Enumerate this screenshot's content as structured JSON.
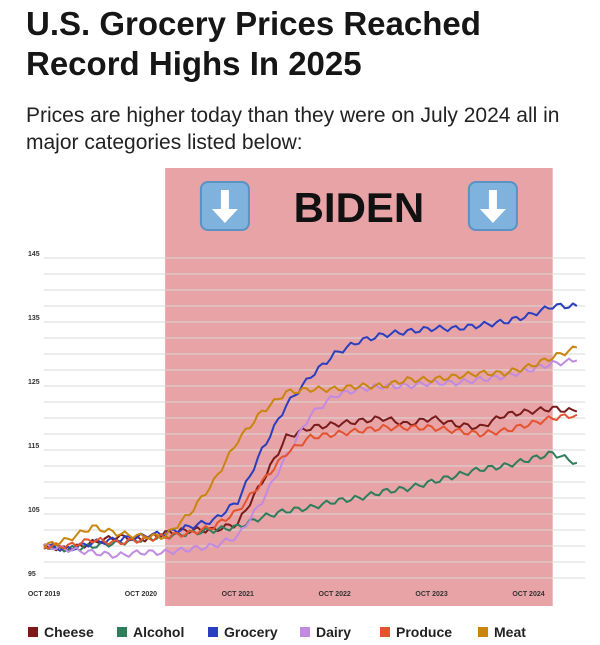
{
  "chart_data": {
    "type": "line",
    "title": "U.S. Grocery Prices Reached Record Highs In 2025",
    "subtitle": "Prices are higher today than they were on July 2024 all in major categories listed below:",
    "xlabel": "",
    "ylabel": "",
    "ylim": [
      95,
      145
    ],
    "yticks": [
      95,
      105,
      115,
      125,
      135,
      145
    ],
    "xlim": [
      "2019-10",
      "2025-05"
    ],
    "xticks": [
      "OCT 2019",
      "OCT 2020",
      "OCT 2021",
      "OCT 2022",
      "OCT 2023",
      "OCT 2024"
    ],
    "x": [
      "2019-10",
      "2020-01",
      "2020-04",
      "2020-07",
      "2020-10",
      "2021-01",
      "2021-04",
      "2021-07",
      "2021-10",
      "2022-01",
      "2022-04",
      "2022-07",
      "2022-10",
      "2023-01",
      "2023-04",
      "2023-07",
      "2023-10",
      "2024-01",
      "2024-04",
      "2024-07",
      "2024-10",
      "2025-01",
      "2025-04"
    ],
    "series": [
      {
        "name": "Cheese",
        "color": "#7a1b1b",
        "values": [
          100,
          99.5,
          100.5,
          101.5,
          101,
          102,
          102.5,
          102.5,
          103.5,
          110,
          117,
          118.5,
          119,
          119.5,
          120,
          119,
          120,
          119,
          118.5,
          120.5,
          121,
          121.5,
          121
        ]
      },
      {
        "name": "Alcohol",
        "color": "#2e7d5b",
        "values": [
          100,
          99.5,
          100,
          100.5,
          101,
          101.5,
          102,
          102.5,
          103,
          104.5,
          105.5,
          106,
          107,
          107.5,
          108.5,
          109,
          110,
          111,
          112,
          112.5,
          113.5,
          114.5,
          113
        ]
      },
      {
        "name": "Grocery",
        "color": "#2a3fbf",
        "values": [
          100,
          99.5,
          100.5,
          101,
          101.5,
          102,
          103,
          104,
          107,
          115,
          122,
          126.5,
          130,
          132,
          133,
          133.5,
          134,
          134,
          134.5,
          135,
          136,
          137.5,
          137.5
        ]
      },
      {
        "name": "Dairy",
        "color": "#c08be0",
        "values": [
          100,
          99.5,
          99,
          98.5,
          99,
          99,
          99.5,
          100,
          101.5,
          107,
          114,
          120.5,
          123.5,
          124.5,
          125,
          125,
          125.5,
          125.5,
          126,
          126.5,
          127.5,
          128.5,
          129
        ]
      },
      {
        "name": "Produce",
        "color": "#e3532f",
        "values": [
          100,
          100,
          101,
          100.5,
          101,
          101.5,
          102,
          103,
          105.5,
          110,
          114.5,
          117,
          117.5,
          118,
          118.5,
          118.5,
          118.5,
          118,
          117.5,
          118,
          119,
          120,
          120.5
        ]
      },
      {
        "name": "Meat",
        "color": "#c8860f",
        "values": [
          100,
          101,
          103,
          102,
          101.5,
          101.5,
          105,
          110,
          116.5,
          121,
          124,
          124.5,
          124.5,
          125,
          125,
          126,
          126,
          126.5,
          127,
          127,
          128,
          129.5,
          131
        ]
      }
    ],
    "highlight": {
      "label": "BIDEN",
      "from": "2021-01",
      "to": "2025-01",
      "color": "#e8a3a6"
    },
    "grid": true,
    "legend": "bottom"
  },
  "icons": {
    "arrow": "down-arrow-icon",
    "glyph": "↓"
  }
}
